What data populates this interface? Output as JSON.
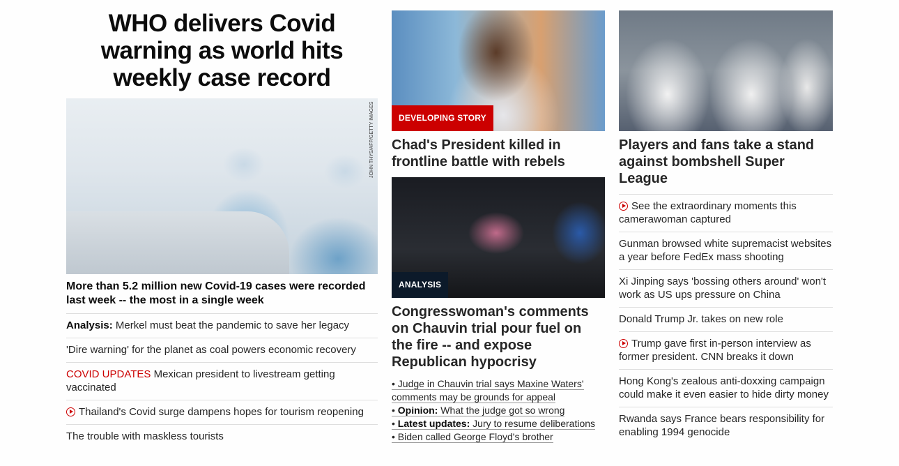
{
  "col1": {
    "headline": "WHO delivers Covid warning as world hits weekly case record",
    "image_credit": "JOHN THYS/AFP/GETTY IMAGES",
    "sub_headline": "More than 5.2 million new Covid-19 cases were recorded last week -- the most in a single week",
    "items": [
      {
        "prefix": "Analysis:",
        "text": " Merkel must beat the pandemic to save her legacy"
      },
      {
        "text": "'Dire warning' for the planet as coal powers economic recovery"
      },
      {
        "label": "COVID UPDATES",
        "text": " Mexican president to livestream getting vaccinated"
      },
      {
        "video": true,
        "text": "Thailand's Covid surge dampens hopes for tourism reopening"
      },
      {
        "text": "The trouble with maskless tourists"
      }
    ]
  },
  "col2": {
    "card1": {
      "tag": "DEVELOPING STORY",
      "headline": "Chad's President killed in frontline battle with rebels"
    },
    "card2": {
      "tag": "ANALYSIS",
      "headline": "Congresswoman's comments on Chauvin trial pour fuel on the fire -- and expose Republican hypocrisy",
      "bullets": [
        {
          "text": "Judge in Chauvin trial says Maxine Waters' comments may be grounds for appeal"
        },
        {
          "prefix": "Opinion:",
          "text": " What the judge got so wrong"
        },
        {
          "prefix": "Latest updates:",
          "text": " Jury to resume deliberations"
        },
        {
          "text": "Biden called George Floyd's brother"
        }
      ]
    }
  },
  "col3": {
    "headline": "Players and fans take a stand against bombshell Super League",
    "items": [
      {
        "video": true,
        "text": "See the extraordinary moments this camerawoman captured"
      },
      {
        "text": "Gunman browsed white supremacist websites a year before FedEx mass shooting"
      },
      {
        "text": "Xi Jinping says 'bossing others around' won't work as US ups pressure on China"
      },
      {
        "text": "Donald Trump Jr. takes on new role"
      },
      {
        "video": true,
        "text": "Trump gave first in-person interview as former president. CNN breaks it down"
      },
      {
        "text": "Hong Kong's zealous anti-doxxing campaign could make it even easier to hide dirty money"
      },
      {
        "text": "Rwanda says France bears responsibility for enabling 1994 genocide"
      }
    ]
  },
  "colors": {
    "accent_red": "#cc0000",
    "tag_dark": "#0c1a2a",
    "divider": "#dedede"
  },
  "icons": {
    "video": "play-circle-icon"
  }
}
